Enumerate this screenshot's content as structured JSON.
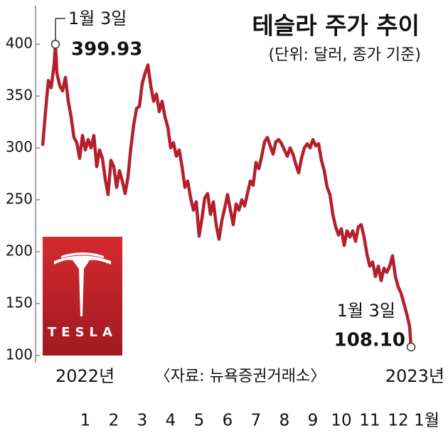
{
  "chart_data": {
    "type": "line",
    "title": "테슬라 주가 추이",
    "subtitle": "(단위: 달러, 종가 기준)",
    "source": "〈자료: 뉴욕증권거래소〉",
    "start_year": "2022년",
    "end_year": "2023년",
    "logo_text": "TESLA",
    "color": "#b3202c",
    "annotations": [
      {
        "text": "1월 3일",
        "label": "399.93"
      },
      {
        "text": "1월 3일",
        "label": "108.10"
      }
    ],
    "x": [
      -0.5,
      -0.4,
      -0.3,
      -0.2,
      -0.1,
      -0.05,
      0,
      0.1,
      0.2,
      0.3,
      0.4,
      0.5,
      0.6,
      0.7,
      0.8,
      0.9,
      1,
      1.1,
      1.2,
      1.3,
      1.4,
      1.5,
      1.6,
      1.7,
      1.8,
      1.9,
      2,
      2.1,
      2.2,
      2.3,
      2.4,
      2.5,
      2.6,
      2.7,
      2.8,
      2.9,
      3,
      3.1,
      3.2,
      3.3,
      3.4,
      3.5,
      3.6,
      3.7,
      3.8,
      3.9,
      4,
      4.1,
      4.2,
      4.3,
      4.4,
      4.5,
      4.6,
      4.7,
      4.8,
      4.9,
      5,
      5.1,
      5.2,
      5.3,
      5.4,
      5.5,
      5.6,
      5.7,
      5.8,
      5.9,
      6,
      6.1,
      6.2,
      6.3,
      6.4,
      6.5,
      6.6,
      6.7,
      6.8,
      6.9,
      7,
      7.1,
      7.2,
      7.3,
      7.4,
      7.5,
      7.6,
      7.7,
      7.8,
      7.9,
      8,
      8.1,
      8.2,
      8.3,
      8.4,
      8.5,
      8.6,
      8.7,
      8.8,
      8.9,
      9,
      9.1,
      9.2,
      9.3,
      9.4,
      9.5,
      9.6,
      9.7,
      9.8,
      9.9,
      10,
      10.1,
      10.2,
      10.3,
      10.4,
      10.5,
      10.6,
      10.7,
      10.8,
      10.9,
      11,
      11.1,
      11.2,
      11.3,
      11.4,
      11.5,
      11.6,
      11.7,
      11.8,
      11.9,
      12,
      12.1,
      12.2,
      12.3,
      12.4,
      12.45
    ],
    "values": [
      302,
      335,
      365,
      358,
      380,
      399.93,
      372,
      360,
      355,
      368,
      345,
      330,
      310,
      305,
      290,
      312,
      298,
      308,
      300,
      312,
      282,
      298,
      290,
      270,
      255,
      288,
      282,
      262,
      278,
      268,
      256,
      272,
      300,
      322,
      338,
      340,
      362,
      372,
      380,
      360,
      345,
      352,
      335,
      345,
      330,
      320,
      300,
      305,
      292,
      298,
      282,
      262,
      268,
      252,
      240,
      248,
      215,
      232,
      252,
      256,
      236,
      248,
      226,
      212,
      230,
      242,
      255,
      240,
      226,
      246,
      240,
      250,
      244,
      256,
      268,
      264,
      286,
      280,
      292,
      306,
      310,
      302,
      294,
      306,
      308,
      304,
      298,
      292,
      300,
      294,
      284,
      276,
      290,
      300,
      304,
      300,
      308,
      302,
      304,
      288,
      278,
      262,
      255,
      236,
      224,
      216,
      222,
      206,
      220,
      214,
      220,
      210,
      224,
      226,
      214,
      198,
      186,
      190,
      176,
      186,
      172,
      184,
      180,
      186,
      196,
      176,
      166,
      160,
      150,
      140,
      128,
      108.1
    ],
    "xlim": [
      -0.75,
      13.5
    ],
    "xticks": [
      1,
      2,
      3,
      4,
      5,
      6,
      7,
      8,
      9,
      10,
      11,
      12,
      {
        "value": 13,
        "label": "1월"
      }
    ],
    "ylim": [
      93,
      433
    ],
    "yticks": [
      100,
      150,
      200,
      250,
      300,
      350,
      400
    ]
  }
}
